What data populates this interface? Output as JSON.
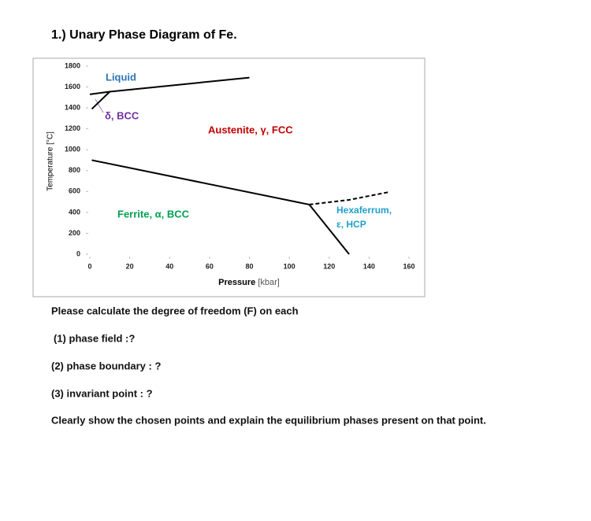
{
  "title": "1.) Unary Phase Diagram of Fe.",
  "chart_data": {
    "type": "line",
    "x_label": "Pressure",
    "x_unit": "[kbar]",
    "y_label": "Temperature [°C]",
    "xlim": [
      0,
      160
    ],
    "ylim": [
      0,
      1800
    ],
    "xticks": [
      0,
      20,
      40,
      60,
      80,
      100,
      120,
      140,
      160
    ],
    "yticks": [
      0,
      200,
      400,
      600,
      800,
      1000,
      1200,
      1400,
      1600,
      1800
    ],
    "lines": [
      {
        "x": [
          0,
          10,
          80
        ],
        "y": [
          1530,
          1555,
          1690
        ],
        "color": "#000000",
        "dashed": false
      },
      {
        "x": [
          1,
          10
        ],
        "y": [
          1390,
          1555
        ],
        "color": "#000000",
        "dashed": false
      },
      {
        "x": [
          1,
          110
        ],
        "y": [
          900,
          475
        ],
        "color": "#000000",
        "dashed": false
      },
      {
        "x": [
          110,
          130
        ],
        "y": [
          475,
          0
        ],
        "color": "#000000",
        "dashed": false
      },
      {
        "x": [
          110,
          130,
          150
        ],
        "y": [
          475,
          520,
          595
        ],
        "color": "#000000",
        "dashed": true
      }
    ],
    "regions": [
      {
        "text": "Liquid",
        "color": "#2e75b6"
      },
      {
        "text": "δ, BCC",
        "color": "#7030a0"
      },
      {
        "text": "Austenite, γ, FCC",
        "color": "#c00000"
      },
      {
        "text": "Ferrite, α, BCC",
        "color": "#00a050"
      },
      {
        "text": "Hexaferrum,",
        "color": "#1fa0c8"
      },
      {
        "text": "ε, HCP",
        "color": "#1fa0c8"
      }
    ]
  },
  "questions": [
    "Please calculate the degree of freedom (F) on each",
    "(1) phase field :?",
    "(2) phase boundary : ?",
    "(3) invariant point : ?",
    "Clearly show the chosen points and explain the equilibrium phases present on that point."
  ]
}
